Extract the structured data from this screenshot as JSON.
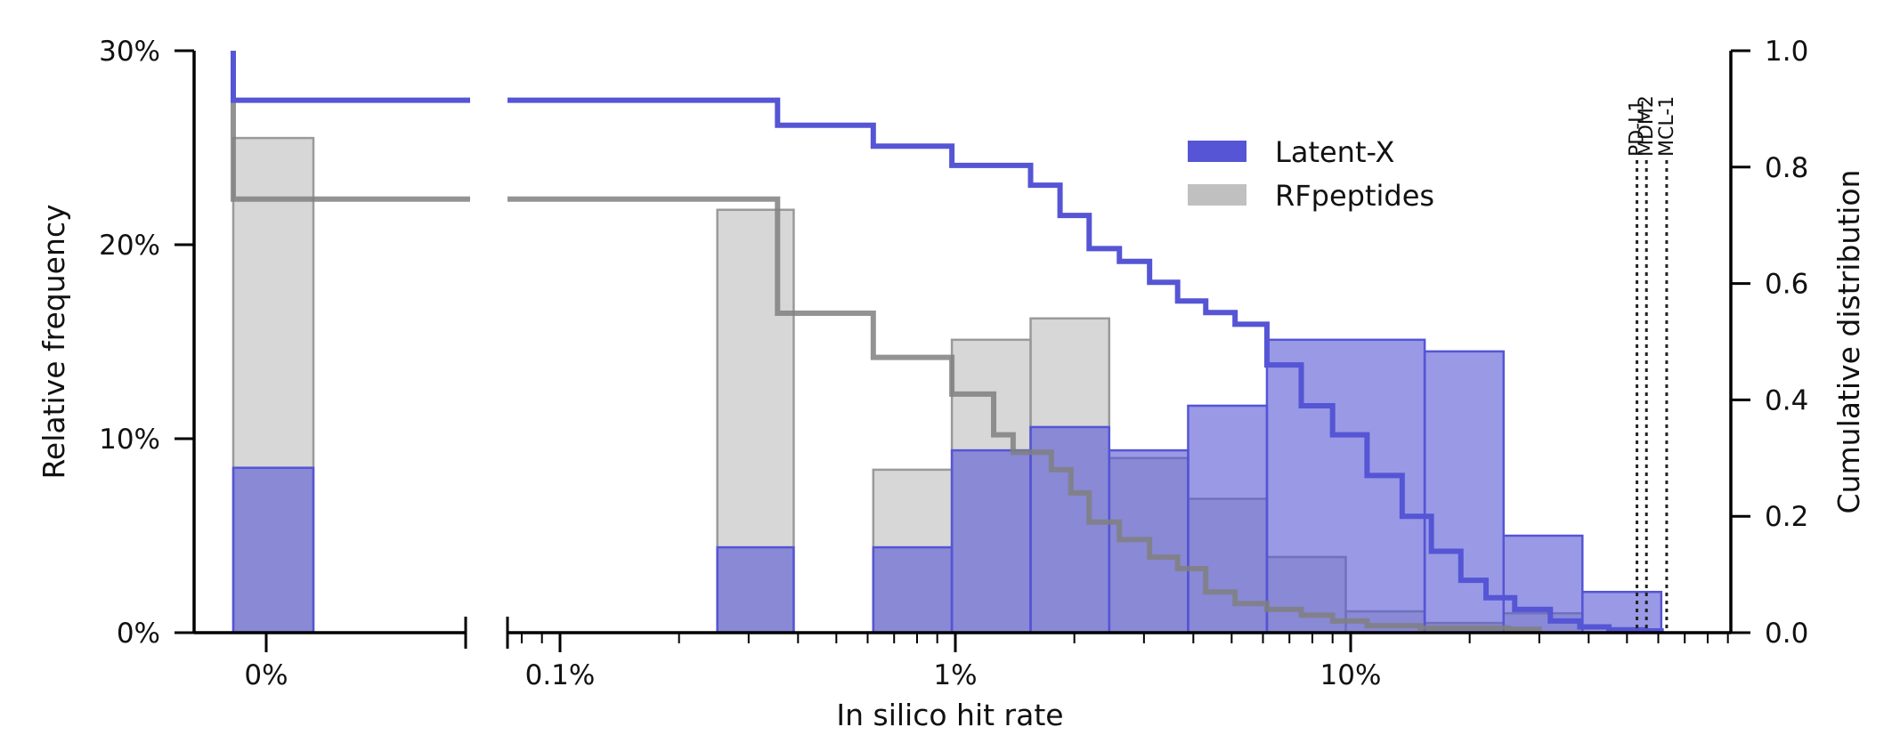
{
  "chart_data": {
    "type": "histogram",
    "xlabel": "In silico hit rate",
    "ylabel_left": "Relative frequency",
    "ylabel_right": "Cumulative distribution",
    "x_scale": "log (with separate 0% panel)",
    "x_ticks": [
      {
        "label": "0%",
        "x": 0
      },
      {
        "label": "0.1%",
        "x": 0.001
      },
      {
        "label": "1%",
        "x": 0.01
      },
      {
        "label": "10%",
        "x": 0.1
      }
    ],
    "y_left_ticks": [
      "0%",
      "10%",
      "20%",
      "30%"
    ],
    "y_left_range": [
      0,
      30
    ],
    "y_right_ticks": [
      "0.0",
      "0.2",
      "0.4",
      "0.6",
      "0.8",
      "1.0"
    ],
    "y_right_range": [
      0,
      1
    ],
    "colors": {
      "latent_x": "#5555d5",
      "rfpeptides": "#999999",
      "cdf_rf": "#808080"
    },
    "legend": {
      "position": "top-right",
      "items": [
        "Latent-X",
        "RFpeptides"
      ]
    },
    "series": [
      {
        "name": "RFpeptides",
        "kind": "histogram",
        "zero_bin": 25.5,
        "bins": [
          {
            "lo": 0.0025,
            "hi": 0.0039,
            "value": 21.8
          },
          {
            "lo": 0.0062,
            "hi": 0.0098,
            "value": 8.4
          },
          {
            "lo": 0.0098,
            "hi": 0.0155,
            "value": 15.1
          },
          {
            "lo": 0.0155,
            "hi": 0.0245,
            "value": 16.2
          },
          {
            "lo": 0.0245,
            "hi": 0.0388,
            "value": 9.0
          },
          {
            "lo": 0.0388,
            "hi": 0.0614,
            "value": 6.9
          },
          {
            "lo": 0.0614,
            "hi": 0.0972,
            "value": 3.9
          },
          {
            "lo": 0.0972,
            "hi": 0.1539,
            "value": 1.1
          },
          {
            "lo": 0.1539,
            "hi": 0.2437,
            "value": 0.5
          },
          {
            "lo": 0.2437,
            "hi": 0.3857,
            "value": 1.0
          }
        ]
      },
      {
        "name": "Latent-X",
        "kind": "histogram",
        "zero_bin": 8.5,
        "bins": [
          {
            "lo": 0.0025,
            "hi": 0.0039,
            "value": 4.4
          },
          {
            "lo": 0.0062,
            "hi": 0.0098,
            "value": 4.4
          },
          {
            "lo": 0.0098,
            "hi": 0.0155,
            "value": 9.4
          },
          {
            "lo": 0.0155,
            "hi": 0.0245,
            "value": 10.6
          },
          {
            "lo": 0.0245,
            "hi": 0.0388,
            "value": 9.4
          },
          {
            "lo": 0.0388,
            "hi": 0.0614,
            "value": 11.7
          },
          {
            "lo": 0.0614,
            "hi": 0.1539,
            "value": 15.1
          },
          {
            "lo": 0.1539,
            "hi": 0.2437,
            "value": 14.5
          },
          {
            "lo": 0.2437,
            "hi": 0.3857,
            "value": 5.0
          },
          {
            "lo": 0.3857,
            "hi": 0.6105,
            "value": 2.1
          }
        ]
      },
      {
        "name": "Latent-X",
        "kind": "cdf",
        "at_zero": 0.915,
        "x": [
          0.00355,
          0.0062,
          0.0098,
          0.0155,
          0.0184,
          0.0218,
          0.026,
          0.031,
          0.0365,
          0.043,
          0.051,
          0.0614,
          0.075,
          0.09,
          0.11,
          0.135,
          0.16,
          0.19,
          0.22,
          0.26,
          0.32,
          0.38,
          0.45,
          0.55,
          0.61
        ],
        "y": [
          0.872,
          0.836,
          0.803,
          0.769,
          0.717,
          0.66,
          0.638,
          0.602,
          0.57,
          0.55,
          0.53,
          0.46,
          0.39,
          0.34,
          0.27,
          0.2,
          0.14,
          0.09,
          0.06,
          0.04,
          0.02,
          0.01,
          0.005,
          0.003,
          0.0
        ]
      },
      {
        "name": "RFpeptides",
        "kind": "cdf",
        "at_zero": 0.745,
        "x": [
          0.00355,
          0.0062,
          0.0098,
          0.0125,
          0.014,
          0.0175,
          0.0196,
          0.0218,
          0.026,
          0.031,
          0.0365,
          0.043,
          0.051,
          0.0614,
          0.075,
          0.09,
          0.11,
          0.15,
          0.25,
          0.3
        ],
        "y": [
          0.549,
          0.473,
          0.41,
          0.34,
          0.31,
          0.28,
          0.24,
          0.19,
          0.16,
          0.13,
          0.11,
          0.07,
          0.05,
          0.04,
          0.03,
          0.02,
          0.012,
          0.008,
          0.006,
          0.0
        ]
      }
    ],
    "reference_lines": [
      {
        "label": "PD-L1",
        "x": 0.53
      },
      {
        "label": "MDM2",
        "x": 0.56
      },
      {
        "label": "MCL-1",
        "x": 0.63
      }
    ]
  }
}
